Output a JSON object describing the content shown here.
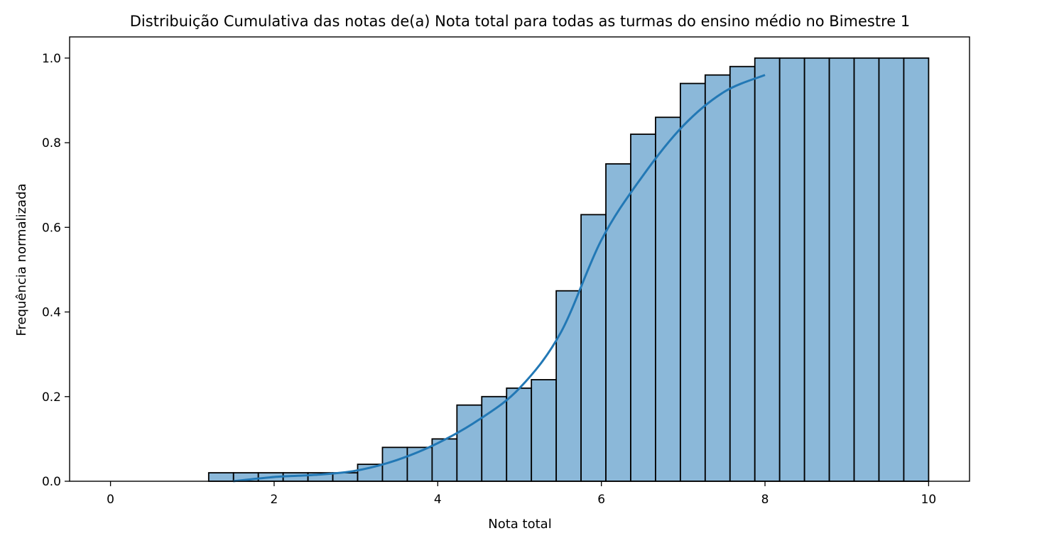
{
  "chart_data": {
    "type": "bar",
    "title": "Distribuição Cumulativa das notas de(a) Nota total para todas as turmas do ensino médio no Bimestre 1",
    "xlabel": "Nota total",
    "ylabel": "Frequência normalizada",
    "xlim": [
      -0.5,
      10.5
    ],
    "ylim": [
      0.0,
      1.05
    ],
    "xticks": [
      0,
      2,
      4,
      6,
      8,
      10
    ],
    "xtick_labels": [
      "0",
      "2",
      "4",
      "6",
      "8",
      "10"
    ],
    "yticks": [
      0.0,
      0.2,
      0.4,
      0.6,
      0.8,
      1.0
    ],
    "ytick_labels": [
      "0.0",
      "0.2",
      "0.4",
      "0.6",
      "0.8",
      "1.0"
    ],
    "grid": false,
    "bin_range": [
      1.2,
      10.0
    ],
    "bar_values": [
      0.02,
      0.02,
      0.02,
      0.02,
      0.02,
      0.02,
      0.04,
      0.08,
      0.08,
      0.1,
      0.18,
      0.2,
      0.22,
      0.24,
      0.45,
      0.63,
      0.75,
      0.82,
      0.86,
      0.94,
      0.96,
      0.98,
      1.0,
      1.0,
      1.0,
      1.0,
      1.0,
      1.0,
      1.0
    ],
    "kde_curve": {
      "x": [
        1.5,
        2.0,
        2.5,
        3.0,
        3.5,
        4.0,
        4.5,
        5.0,
        5.5,
        6.0,
        6.5,
        7.0,
        7.5,
        8.0
      ],
      "y": [
        0.0,
        0.01,
        0.015,
        0.025,
        0.05,
        0.09,
        0.145,
        0.22,
        0.35,
        0.57,
        0.72,
        0.84,
        0.92,
        0.96
      ]
    },
    "colors": {
      "bar_fill": "#8bb8d9",
      "bar_edge": "#000000",
      "curve": "#2278b5"
    }
  }
}
